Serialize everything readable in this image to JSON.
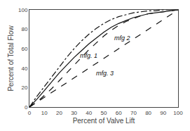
{
  "chart_data": {
    "type": "line",
    "xlabel": "Percent of Valve Lift",
    "ylabel": "Percent of Total Flow",
    "xlim": [
      0,
      100
    ],
    "ylim": [
      0,
      100
    ],
    "xticks": [
      0,
      10,
      20,
      30,
      40,
      50,
      60,
      70,
      80,
      90,
      100
    ],
    "yticks": [
      0,
      20,
      40,
      60,
      80,
      100
    ],
    "grid": false,
    "series": [
      {
        "x": [
          0,
          100
        ],
        "values": [
          0,
          100
        ],
        "color": "#111111",
        "line_style": "dashed"
      },
      {
        "x": [
          0,
          5,
          10,
          15,
          20,
          25,
          30,
          35,
          40,
          45,
          50,
          55,
          60,
          65,
          70,
          75,
          80,
          85,
          90,
          95,
          100
        ],
        "values": [
          0,
          11,
          21,
          31,
          41,
          51,
          60,
          68,
          75,
          81,
          86,
          90,
          93,
          95,
          97,
          98,
          99,
          99,
          100,
          100,
          100
        ],
        "color": "#111111",
        "line_style": "dashdot"
      },
      {
        "x": [
          0,
          5,
          10,
          15,
          20,
          25,
          30,
          35,
          40,
          45,
          50,
          55,
          60,
          65,
          70,
          75,
          80,
          85,
          90,
          95,
          100
        ],
        "values": [
          0,
          8,
          17,
          26,
          35,
          43,
          51,
          58,
          65,
          71,
          77,
          82,
          86,
          89,
          92,
          94,
          96,
          97,
          98,
          99,
          100
        ],
        "color": "#111111",
        "line_style": "solid"
      },
      {
        "x": [
          0,
          5,
          10,
          15,
          20,
          25,
          30,
          35,
          40,
          45,
          50,
          55,
          60,
          65,
          70,
          75,
          80,
          85,
          90,
          95,
          100
        ],
        "values": [
          0,
          5,
          12,
          19,
          27,
          35,
          43,
          51,
          59,
          66,
          73,
          79,
          84,
          88,
          91,
          94,
          96,
          97,
          98,
          99,
          100
        ],
        "color": "#111111",
        "line_style": "dashed"
      }
    ],
    "annotations": [
      {
        "text": "mfg. 1",
        "x": 33,
        "y": 48
      },
      {
        "text": "mfg 2",
        "x": 56,
        "y": 66
      },
      {
        "text": "mfg. 3",
        "x": 44,
        "y": 30
      }
    ]
  }
}
